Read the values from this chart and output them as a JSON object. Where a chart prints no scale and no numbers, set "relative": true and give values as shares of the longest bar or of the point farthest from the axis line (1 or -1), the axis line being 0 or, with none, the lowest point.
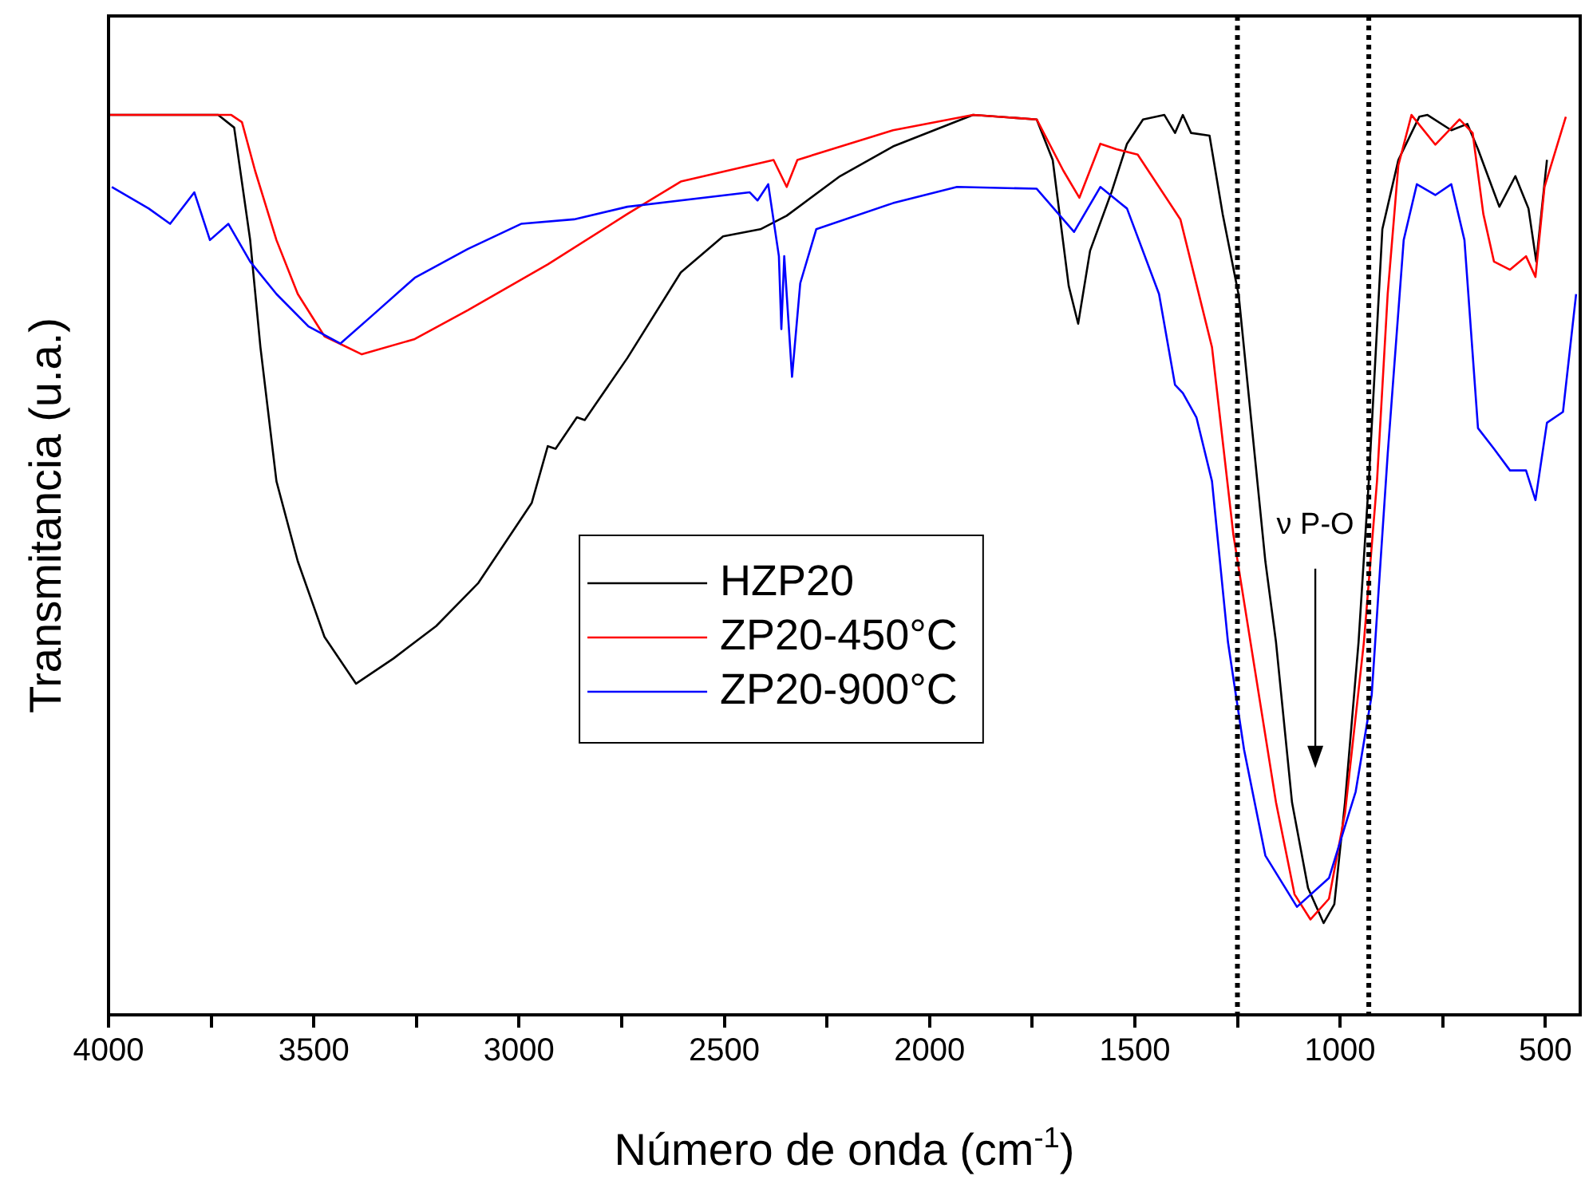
{
  "chart_data": {
    "type": "line",
    "xlabel": "Número de onda (cm$^{-1}$)",
    "ylabel": "Transmitancia (u.a.)",
    "relative": true,
    "xlim": [
      4000,
      415
    ],
    "xticks": [
      4000,
      {
        "value": 3750,
        "label": null
      },
      3500,
      {
        "value": 3250,
        "label": null
      },
      3000,
      {
        "value": 2750,
        "label": null
      },
      2500,
      {
        "value": 2250,
        "label": null
      },
      2000,
      {
        "value": 1750,
        "label": null
      },
      1500,
      {
        "value": 1250,
        "label": null
      },
      1000,
      {
        "value": 750,
        "label": null
      },
      500
    ],
    "legend": "center",
    "grid": false,
    "marker": "none",
    "line_style": "solid",
    "ref_lines": [
      {
        "axis": "x",
        "value": 1250,
        "line_style": "dotted",
        "color": "#000000"
      },
      {
        "axis": "x",
        "value": 930,
        "line_style": "dotted",
        "color": "#000000"
      }
    ],
    "annotations": [
      "ν P-O"
    ],
    "series": [
      {
        "name": "HZP20",
        "color": "#000000",
        "x": [
          4000,
          3733,
          3694,
          3655,
          3630,
          3591,
          3539,
          3474,
          3397,
          3306,
          3202,
          3099,
          2969,
          2930,
          2911,
          2859,
          2840,
          2736,
          2606,
          2503,
          2412,
          2348,
          2218,
          2089,
          1894,
          1739,
          1700,
          1661,
          1638,
          1609,
          1557,
          1519,
          1480,
          1428,
          1402,
          1383,
          1363,
          1318,
          1286,
          1247,
          1182,
          1156,
          1117,
          1078,
          1040,
          1014,
          988,
          955,
          930,
          897,
          858,
          807,
          787,
          729,
          690,
          664,
          612,
          573,
          541,
          522,
          496
        ],
        "values": [
          1.0,
          1.0,
          0.986,
          0.861,
          0.742,
          0.593,
          0.504,
          0.42,
          0.368,
          0.396,
          0.432,
          0.48,
          0.569,
          0.632,
          0.629,
          0.664,
          0.661,
          0.73,
          0.825,
          0.865,
          0.873,
          0.888,
          0.932,
          0.965,
          1.0,
          0.995,
          0.95,
          0.81,
          0.768,
          0.849,
          0.914,
          0.968,
          0.995,
          1.0,
          0.98,
          1.0,
          0.98,
          0.977,
          0.89,
          0.8,
          0.504,
          0.414,
          0.236,
          0.141,
          0.102,
          0.123,
          0.236,
          0.414,
          0.593,
          0.873,
          0.95,
          0.998,
          1.0,
          0.983,
          0.99,
          0.962,
          0.898,
          0.932,
          0.896,
          0.837,
          0.95
        ]
      },
      {
        "name": "ZP20-450°C",
        "color": "#ff0000",
        "x": [
          4000,
          3701,
          3675,
          3643,
          3591,
          3539,
          3474,
          3383,
          3254,
          3125,
          2930,
          2736,
          2606,
          2380,
          2348,
          2322,
          2089,
          1894,
          1739,
          1674,
          1635,
          1584,
          1545,
          1493,
          1389,
          1312,
          1260,
          1208,
          1156,
          1111,
          1072,
          1027,
          988,
          942,
          910,
          884,
          858,
          826,
          768,
          709,
          677,
          651,
          625,
          586,
          547,
          524,
          502,
          470,
          450
        ],
        "values": [
          1.0,
          1.0,
          0.992,
          0.938,
          0.861,
          0.801,
          0.754,
          0.734,
          0.751,
          0.783,
          0.834,
          0.89,
          0.926,
          0.95,
          0.92,
          0.95,
          0.983,
          1.0,
          0.995,
          0.938,
          0.908,
          0.968,
          0.962,
          0.956,
          0.884,
          0.742,
          0.534,
          0.385,
          0.236,
          0.134,
          0.106,
          0.129,
          0.224,
          0.414,
          0.593,
          0.801,
          0.944,
          1.0,
          0.967,
          0.995,
          0.98,
          0.89,
          0.837,
          0.828,
          0.843,
          0.82,
          0.92,
          0.968,
          0.998
        ]
      },
      {
        "name": "ZP20-900°C",
        "color": "#0000ff",
        "x": [
          3992,
          3902,
          3850,
          3791,
          3753,
          3708,
          3655,
          3591,
          3513,
          3435,
          3358,
          3254,
          3125,
          2995,
          2866,
          2736,
          2438,
          2419,
          2393,
          2367,
          2361,
          2354,
          2335,
          2315,
          2276,
          2089,
          1933,
          1739,
          1648,
          1584,
          1519,
          1441,
          1402,
          1383,
          1350,
          1312,
          1273,
          1234,
          1182,
          1105,
          1027,
          962,
          923,
          897,
          884,
          845,
          813,
          768,
          729,
          697,
          664,
          625,
          586,
          547,
          524,
          496,
          457,
          425
        ],
        "values": [
          0.92,
          0.896,
          0.879,
          0.914,
          0.861,
          0.879,
          0.837,
          0.801,
          0.765,
          0.746,
          0.777,
          0.819,
          0.851,
          0.879,
          0.884,
          0.898,
          0.914,
          0.905,
          0.923,
          0.843,
          0.762,
          0.843,
          0.709,
          0.813,
          0.873,
          0.902,
          0.92,
          0.918,
          0.87,
          0.92,
          0.896,
          0.801,
          0.7,
          0.691,
          0.664,
          0.593,
          0.414,
          0.295,
          0.177,
          0.12,
          0.152,
          0.248,
          0.355,
          0.534,
          0.623,
          0.861,
          0.923,
          0.911,
          0.923,
          0.861,
          0.652,
          0.629,
          0.605,
          0.605,
          0.572,
          0.658,
          0.67,
          0.801
        ]
      }
    ]
  }
}
